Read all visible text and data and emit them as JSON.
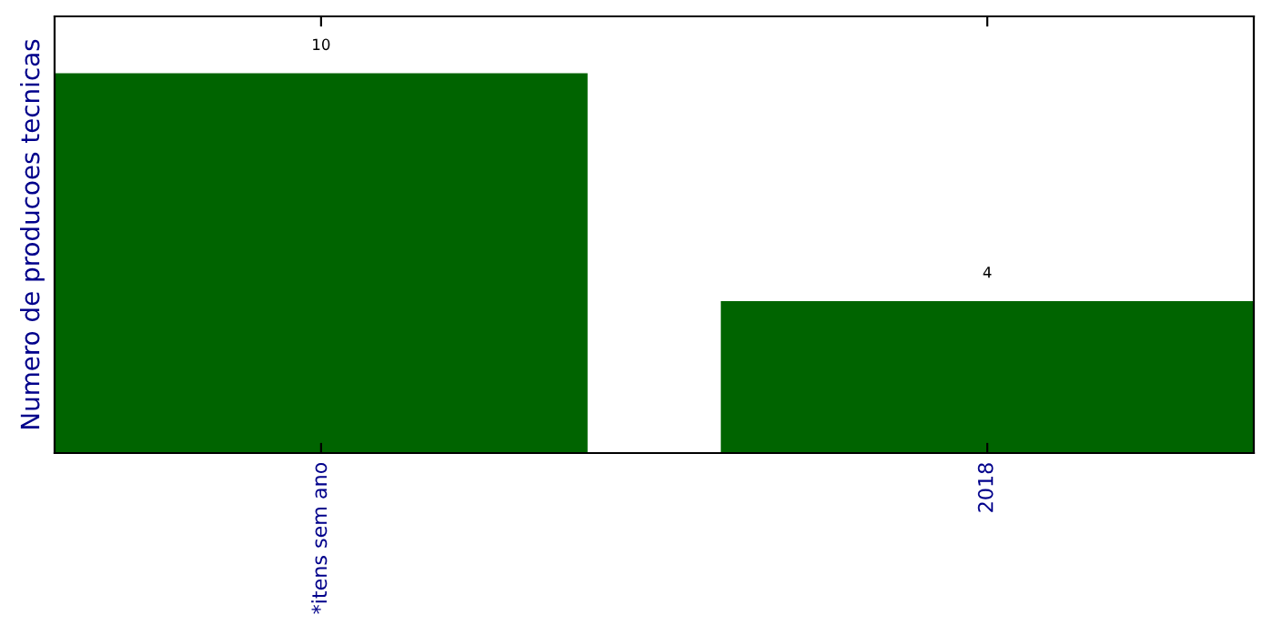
{
  "chart_data": {
    "type": "bar",
    "ylabel": "Numero de producoes tecnicas",
    "categories": [
      "*itens sem ano",
      "2018"
    ],
    "values": [
      10,
      4
    ],
    "color": "#006400",
    "ylim": [
      0,
      11.5
    ],
    "data_labels": true,
    "tick_labels": "x",
    "grid": false,
    "legend": false
  }
}
